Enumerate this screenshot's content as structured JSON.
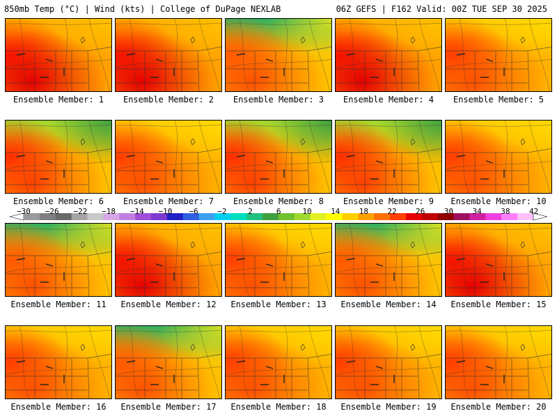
{
  "header": {
    "left": "850mb Temp (°C) | Wind (kts) | College of DuPage NEXLAB",
    "right": "06Z GEFS | F162 Valid: 00Z TUE SEP 30 2025"
  },
  "caption_prefix": "Ensemble Member: ",
  "members": [
    {
      "label": "Ensemble Member: 1",
      "scheme": "hot"
    },
    {
      "label": "Ensemble Member: 2",
      "scheme": "hot"
    },
    {
      "label": "Ensemble Member: 3",
      "scheme": "cool-north"
    },
    {
      "label": "Ensemble Member: 4",
      "scheme": "hot"
    },
    {
      "label": "Ensemble Member: 5",
      "scheme": "warm"
    },
    {
      "label": "Ensemble Member: 6",
      "scheme": "green-ne"
    },
    {
      "label": "Ensemble Member: 7",
      "scheme": "warm"
    },
    {
      "label": "Ensemble Member: 8",
      "scheme": "green-ne"
    },
    {
      "label": "Ensemble Member: 9",
      "scheme": "green-ne"
    },
    {
      "label": "Ensemble Member: 10",
      "scheme": "warm"
    },
    {
      "label": "Ensemble Member: 11",
      "scheme": "cool-north"
    },
    {
      "label": "Ensemble Member: 12",
      "scheme": "hot"
    },
    {
      "label": "Ensemble Member: 13",
      "scheme": "warm"
    },
    {
      "label": "Ensemble Member: 14",
      "scheme": "cool-north"
    },
    {
      "label": "Ensemble Member: 15",
      "scheme": "hot"
    },
    {
      "label": "Ensemble Member: 16",
      "scheme": "warm"
    },
    {
      "label": "Ensemble Member: 17",
      "scheme": "cool-north"
    },
    {
      "label": "Ensemble Member: 18",
      "scheme": "warm"
    },
    {
      "label": "Ensemble Member: 19",
      "scheme": "warm"
    },
    {
      "label": "Ensemble Member: 20",
      "scheme": "warm"
    }
  ],
  "colorbar": {
    "labels": [
      "−30",
      "−26",
      "−22",
      "−18",
      "−14",
      "−10",
      "−6",
      "−2",
      "2",
      "6",
      "10",
      "14",
      "18",
      "22",
      "26",
      "30",
      "34",
      "38",
      "42"
    ],
    "colors": [
      "#9a9a9a",
      "#7f7f7f",
      "#6a6a6a",
      "#a5a5a5",
      "#c8c8c8",
      "#d6a6e6",
      "#c080e0",
      "#a050d8",
      "#7e3ad0",
      "#2020c8",
      "#2d5fe0",
      "#3ca0f0",
      "#00d0f0",
      "#00e0c0",
      "#20c080",
      "#40a040",
      "#70c030",
      "#a0d830",
      "#e0f020",
      "#ffff00",
      "#ffd000",
      "#ffa000",
      "#ff7000",
      "#ff4000",
      "#e60000",
      "#c00000",
      "#900000",
      "#a01060",
      "#d020a0",
      "#f040e0",
      "#ff80ff",
      "#ffc0ff"
    ]
  },
  "schemes": {
    "hot": {
      "base": "#ffa000",
      "n": "#ffb300",
      "s": "#e60000",
      "w": "#ff2000",
      "e": "#ffc000"
    },
    "warm": {
      "base": "#ffb000",
      "n": "#ffd000",
      "s": "#ff5000",
      "w": "#ff3000",
      "e": "#ffd800"
    },
    "cool-north": {
      "base": "#ffc000",
      "n": "#30b060",
      "s": "#ff5000",
      "w": "#ff6000",
      "e": "#d8e020"
    },
    "green-ne": {
      "base": "#ffc000",
      "n": "#a0d830",
      "s": "#ff4000",
      "w": "#ff2000",
      "e": "#40a040"
    }
  }
}
